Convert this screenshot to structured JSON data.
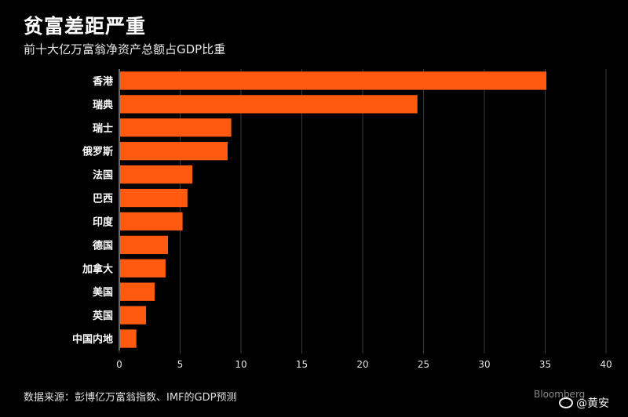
{
  "header": {
    "title": "贫富差距严重",
    "subtitle": "前十大亿万富翁净资产总额占GDP比重"
  },
  "footer": {
    "source": "数据来源：彭博亿万富翁指数、IMF的GDP预测",
    "watermark": "Bloomberg",
    "weibo_handle": "@黄安"
  },
  "colors": {
    "bar": "#ff5a0f",
    "background": "#000000",
    "text": "#ffffff"
  },
  "chart_data": {
    "type": "bar",
    "orientation": "horizontal",
    "title": "贫富差距严重",
    "subtitle": "前十大亿万富翁净资产总额占GDP比重",
    "categories": [
      "香港",
      "瑞典",
      "瑞士",
      "俄罗斯",
      "法国",
      "巴西",
      "印度",
      "德国",
      "加拿大",
      "美国",
      "英国",
      "中国内地"
    ],
    "values": [
      35.1,
      24.5,
      9.2,
      8.9,
      6.0,
      5.6,
      5.2,
      4.0,
      3.8,
      2.9,
      2.2,
      1.4
    ],
    "xlim": [
      0,
      40
    ],
    "xticks": [
      0,
      5,
      10,
      15,
      20,
      25,
      30,
      35,
      40
    ],
    "grid": true,
    "xlabel": "",
    "ylabel": ""
  }
}
